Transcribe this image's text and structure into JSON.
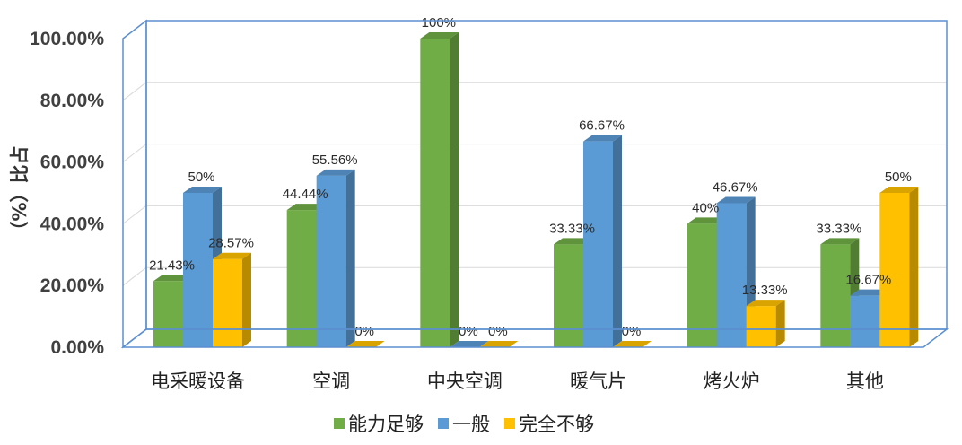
{
  "chart_data": {
    "type": "bar",
    "categories": [
      "电采暖设备",
      "空调",
      "中央空调",
      "暖气片",
      "烤火炉",
      "其他"
    ],
    "series": [
      {
        "name": "能力足够",
        "color": "#70AD47",
        "values": [
          21.43,
          44.44,
          100,
          33.33,
          40,
          33.33
        ],
        "labels": [
          "21.43%",
          "44.44%",
          "100%",
          "33.33%",
          "40%",
          "33.33%"
        ]
      },
      {
        "name": "一般",
        "color": "#5B9BD5",
        "values": [
          50,
          55.56,
          0,
          66.67,
          46.67,
          16.67
        ],
        "labels": [
          "50%",
          "55.56%",
          "0%",
          "66.67%",
          "46.67%",
          "16.67%"
        ]
      },
      {
        "name": "完全不够",
        "color": "#FFC000",
        "values": [
          28.57,
          0,
          0,
          0,
          13.33,
          50
        ],
        "labels": [
          "28.57%",
          "0%",
          "0%",
          "0%",
          "13.33%",
          "50%"
        ]
      }
    ],
    "title": "",
    "xlabel": "",
    "ylabel": "（%）比占",
    "ylim": [
      0,
      100
    ],
    "yticks": [
      "0.00%",
      "20.00%",
      "40.00%",
      "60.00%",
      "80.00%",
      "100.00%"
    ],
    "grid": true,
    "legend_position": "bottom",
    "three_d": true
  }
}
